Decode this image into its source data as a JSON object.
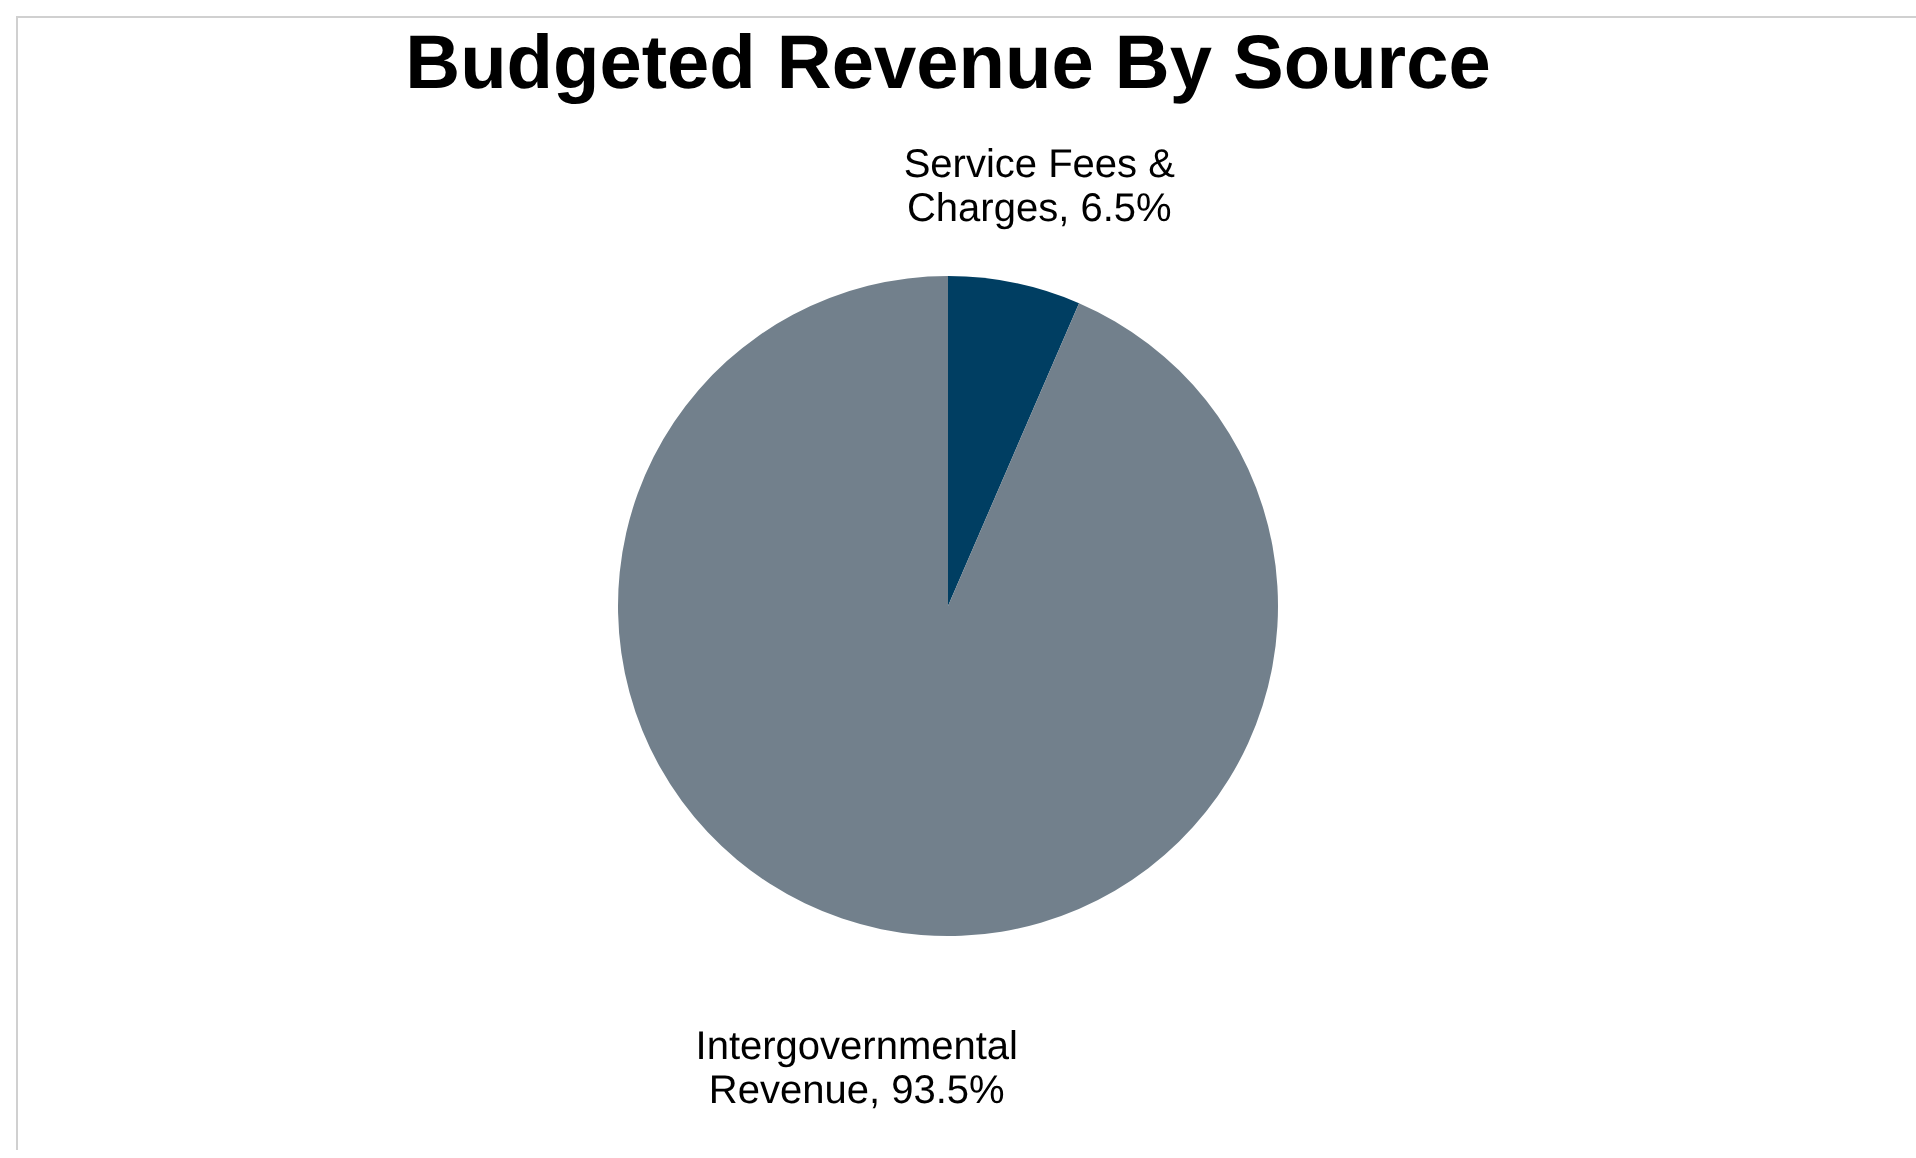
{
  "chart_data": {
    "type": "pie",
    "title": "Budgeted Revenue By Source",
    "categories": [
      "Service Fees & Charges",
      "Intergovernmental Revenue"
    ],
    "values": [
      6.5,
      93.5
    ],
    "colors": [
      "#003e62",
      "#72808c"
    ],
    "value_labels": [
      "6.5%",
      "93.5%"
    ],
    "legend": false
  }
}
